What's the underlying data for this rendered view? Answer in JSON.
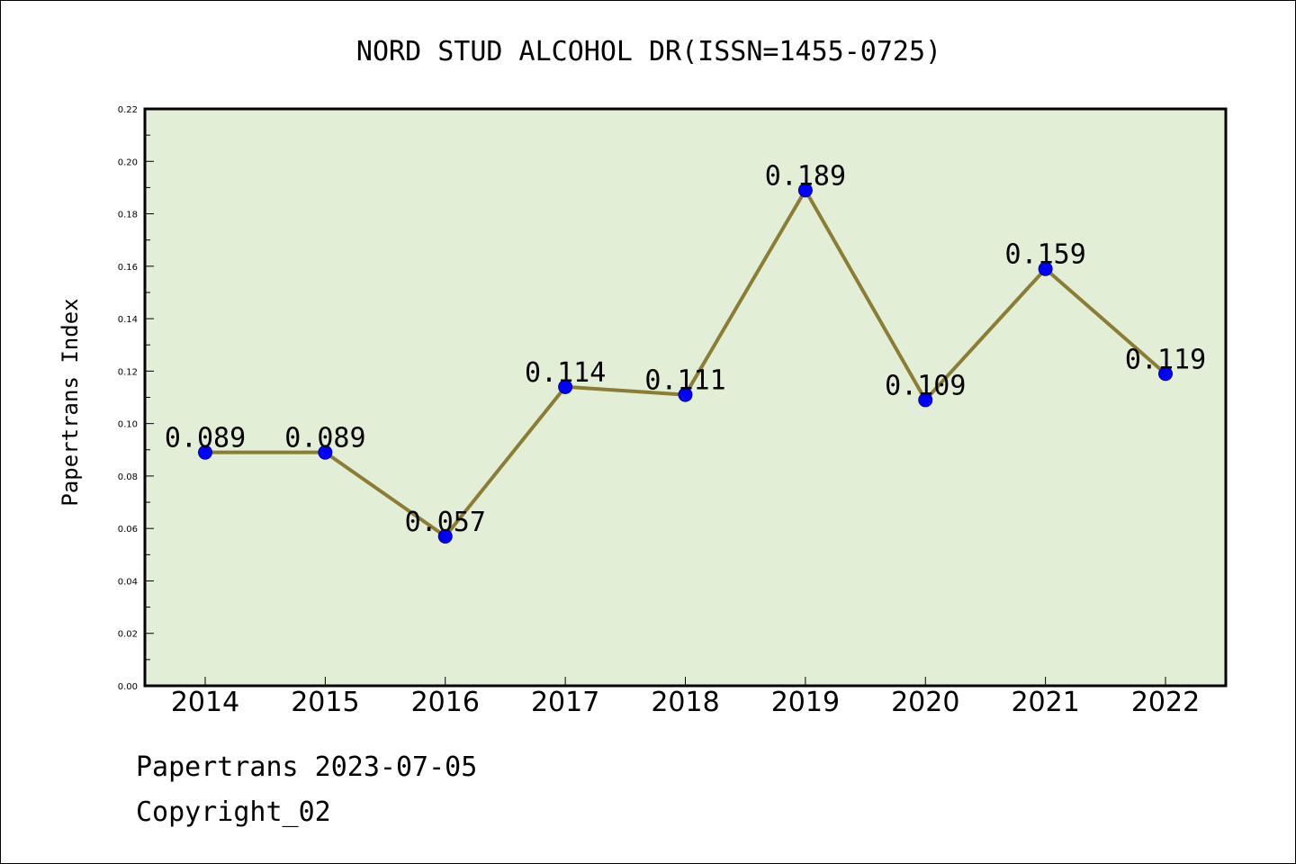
{
  "chart_data": {
    "type": "line",
    "title": "NORD STUD ALCOHOL DR(ISSN=1455-0725)",
    "xlabel": "",
    "ylabel": "Papertrans Index",
    "categories": [
      "2014",
      "2015",
      "2016",
      "2017",
      "2018",
      "2019",
      "2020",
      "2021",
      "2022"
    ],
    "series": [
      {
        "values": [
          0.089,
          0.089,
          0.057,
          0.114,
          0.111,
          0.189,
          0.109,
          0.159,
          0.119
        ],
        "data_labels": [
          "0.089",
          "0.089",
          "0.057",
          "0.114",
          "0.111",
          "0.189",
          "0.109",
          "0.159",
          "0.119"
        ]
      }
    ],
    "ylim": [
      0,
      0.22
    ],
    "yticks": [
      "0.00",
      "0.02",
      "0.04",
      "0.06",
      "0.08",
      "0.10",
      "0.12",
      "0.14",
      "0.16",
      "0.18",
      "0.20",
      "0.22"
    ],
    "grid": false,
    "legend": "none",
    "colors": {
      "plot_background": "#e2efd6",
      "line": "#8b7d35",
      "marker": "#0000ff"
    }
  },
  "footer": {
    "source": "Papertrans 2023-07-05",
    "copyright": "Copyright_02"
  }
}
